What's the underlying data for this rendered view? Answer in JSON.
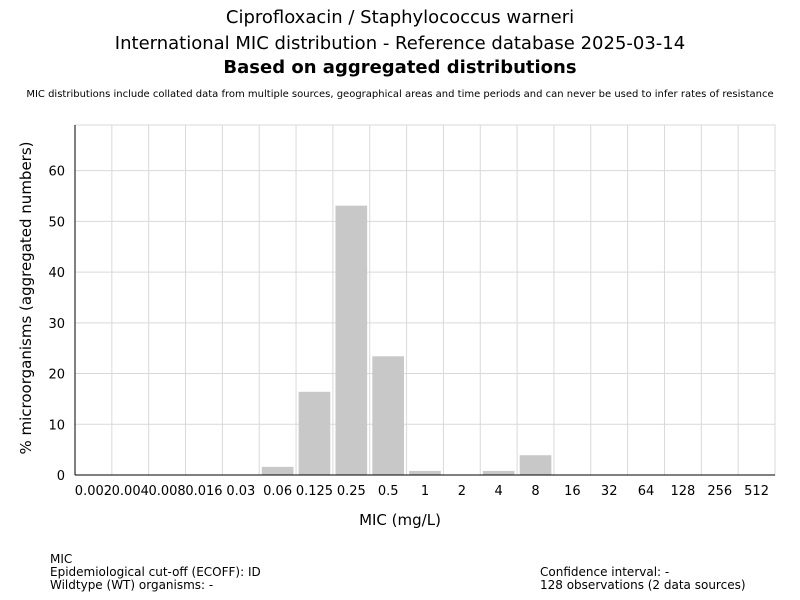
{
  "header": {
    "title_line1": "Ciprofloxacin / Staphylococcus warneri",
    "title_line2": "International MIC distribution - Reference database 2025-03-14",
    "title_line3": "Based on aggregated distributions",
    "disclaimer": "MIC distributions include collated data from multiple sources, geographical areas and time periods and can never be used to infer rates of resistance"
  },
  "chart_data": {
    "type": "bar",
    "xlabel": "MIC (mg/L)",
    "ylabel": "% microorganisms (aggregated numbers)",
    "ylim": [
      0,
      69
    ],
    "yticks": [
      0,
      10,
      20,
      30,
      40,
      50,
      60
    ],
    "categories": [
      "0.002",
      "0.004",
      "0.008",
      "0.016",
      "0.03",
      "0.06",
      "0.125",
      "0.25",
      "0.5",
      "1",
      "2",
      "4",
      "8",
      "16",
      "32",
      "64",
      "128",
      "256",
      "512"
    ],
    "values": [
      0,
      0,
      0,
      0,
      0,
      1.6,
      16.4,
      53.1,
      23.4,
      0.8,
      0,
      0.8,
      3.9,
      0,
      0,
      0,
      0,
      0,
      0
    ],
    "grid": true,
    "bar_color": "#c8c8c8"
  },
  "footer": {
    "left": {
      "line1": "MIC",
      "line2": "Epidemiological cut-off (ECOFF): ID",
      "line3": "Wildtype (WT) organisms:  -"
    },
    "right": {
      "line1": "Confidence interval: -",
      "line2": "128 observations (2 data sources)"
    }
  }
}
